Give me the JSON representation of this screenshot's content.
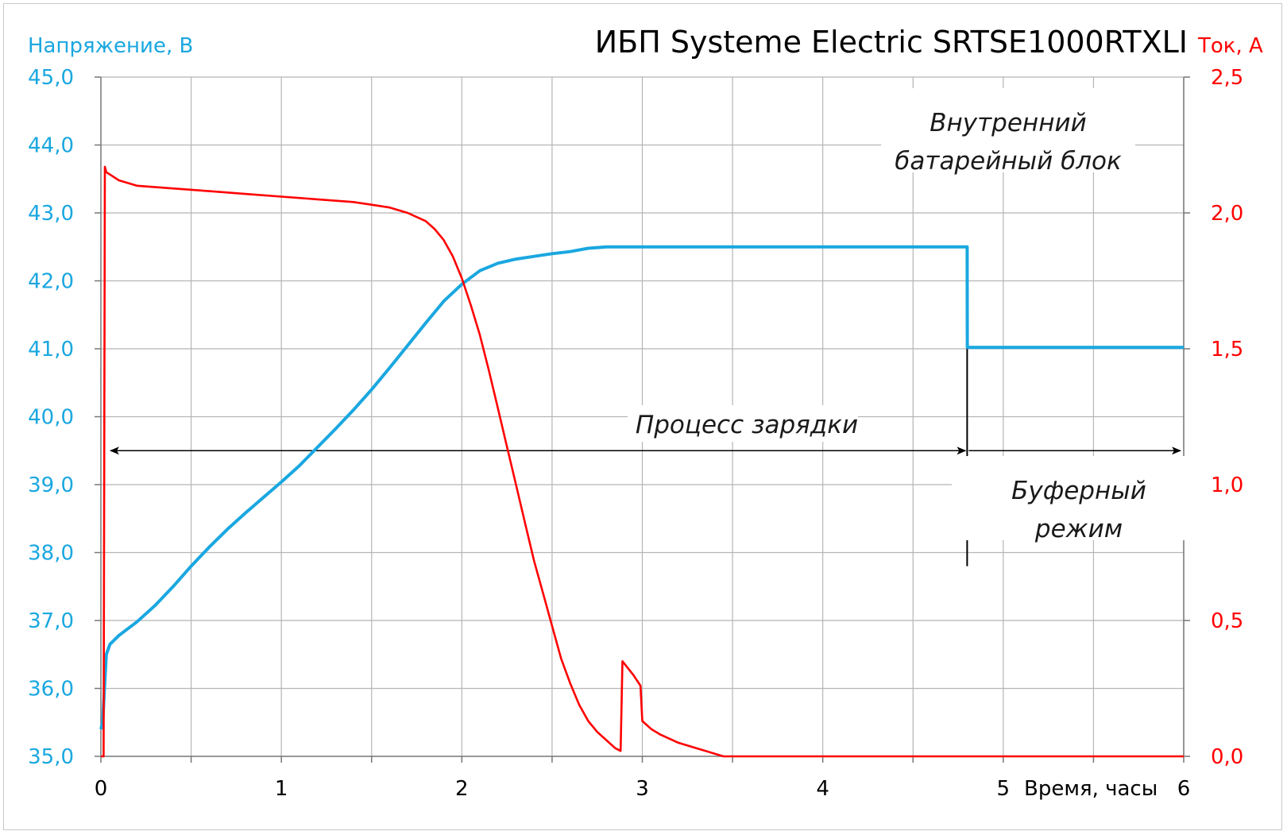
{
  "chart_data": {
    "type": "line",
    "title": "ИБП Systeme Electric SRTSE1000RTXLI",
    "ylabel_left": "Напряжение, В",
    "ylabel_right": "Ток, А",
    "xlabel": "Время, часы",
    "xlim": [
      0,
      6
    ],
    "ylim_left": [
      35,
      45
    ],
    "ylim_right": [
      0,
      2.5
    ],
    "x_ticks": [
      "0",
      "1",
      "2",
      "3",
      "4",
      "5",
      "6"
    ],
    "y_left_ticks": [
      "35,0",
      "36,0",
      "37,0",
      "38,0",
      "39,0",
      "40,0",
      "41,0",
      "42,0",
      "43,0",
      "44,0",
      "45,0"
    ],
    "y_right_ticks": [
      "0,0",
      "0,5",
      "1,0",
      "1,5",
      "2,0",
      "2,5"
    ],
    "grid": true,
    "colors": {
      "voltage": "#1aa7e0",
      "current": "#ff0000",
      "annotation": "#000000"
    },
    "series": [
      {
        "key": "voltage",
        "axis": "left",
        "points": [
          [
            0.0,
            35.4
          ],
          [
            0.01,
            35.5
          ],
          [
            0.02,
            36.0
          ],
          [
            0.03,
            36.5
          ],
          [
            0.05,
            36.65
          ],
          [
            0.1,
            36.78
          ],
          [
            0.2,
            36.98
          ],
          [
            0.3,
            37.22
          ],
          [
            0.4,
            37.5
          ],
          [
            0.5,
            37.8
          ],
          [
            0.6,
            38.08
          ],
          [
            0.7,
            38.34
          ],
          [
            0.8,
            38.58
          ],
          [
            0.9,
            38.81
          ],
          [
            1.0,
            39.04
          ],
          [
            1.1,
            39.28
          ],
          [
            1.2,
            39.55
          ],
          [
            1.3,
            39.82
          ],
          [
            1.4,
            40.1
          ],
          [
            1.5,
            40.4
          ],
          [
            1.6,
            40.72
          ],
          [
            1.7,
            41.05
          ],
          [
            1.8,
            41.38
          ],
          [
            1.9,
            41.7
          ],
          [
            2.0,
            41.95
          ],
          [
            2.1,
            42.15
          ],
          [
            2.2,
            42.26
          ],
          [
            2.3,
            42.32
          ],
          [
            2.4,
            42.36
          ],
          [
            2.5,
            42.4
          ],
          [
            2.6,
            42.43
          ],
          [
            2.7,
            42.48
          ],
          [
            2.8,
            42.5
          ],
          [
            3.0,
            42.5
          ],
          [
            3.5,
            42.5
          ],
          [
            4.0,
            42.5
          ],
          [
            4.5,
            42.5
          ],
          [
            4.8,
            42.5
          ],
          [
            4.801,
            41.02
          ],
          [
            5.0,
            41.02
          ],
          [
            5.5,
            41.02
          ],
          [
            6.0,
            41.02
          ]
        ]
      },
      {
        "key": "current",
        "axis": "right",
        "points": [
          [
            0.0,
            0.0
          ],
          [
            0.015,
            0.0
          ],
          [
            0.022,
            2.17
          ],
          [
            0.03,
            2.15
          ],
          [
            0.1,
            2.12
          ],
          [
            0.2,
            2.1
          ],
          [
            0.4,
            2.09
          ],
          [
            0.6,
            2.08
          ],
          [
            0.8,
            2.07
          ],
          [
            1.0,
            2.06
          ],
          [
            1.2,
            2.05
          ],
          [
            1.4,
            2.04
          ],
          [
            1.5,
            2.03
          ],
          [
            1.6,
            2.02
          ],
          [
            1.7,
            2.0
          ],
          [
            1.8,
            1.97
          ],
          [
            1.85,
            1.94
          ],
          [
            1.9,
            1.9
          ],
          [
            1.95,
            1.84
          ],
          [
            2.0,
            1.76
          ],
          [
            2.05,
            1.66
          ],
          [
            2.1,
            1.55
          ],
          [
            2.15,
            1.42
          ],
          [
            2.2,
            1.28
          ],
          [
            2.25,
            1.14
          ],
          [
            2.3,
            1.0
          ],
          [
            2.35,
            0.86
          ],
          [
            2.4,
            0.72
          ],
          [
            2.45,
            0.6
          ],
          [
            2.5,
            0.48
          ],
          [
            2.55,
            0.36
          ],
          [
            2.6,
            0.27
          ],
          [
            2.65,
            0.19
          ],
          [
            2.7,
            0.13
          ],
          [
            2.75,
            0.09
          ],
          [
            2.8,
            0.06
          ],
          [
            2.85,
            0.03
          ],
          [
            2.88,
            0.02
          ],
          [
            2.89,
            0.35
          ],
          [
            2.95,
            0.3
          ],
          [
            2.99,
            0.26
          ],
          [
            3.0,
            0.13
          ],
          [
            3.05,
            0.1
          ],
          [
            3.1,
            0.08
          ],
          [
            3.2,
            0.05
          ],
          [
            3.3,
            0.03
          ],
          [
            3.4,
            0.01
          ],
          [
            3.45,
            0.0
          ],
          [
            4.0,
            0.0
          ],
          [
            5.0,
            0.0
          ],
          [
            6.0,
            0.0
          ]
        ]
      }
    ],
    "annotations": {
      "internal_battery": [
        "Внутренний",
        "батарейный блок"
      ],
      "charging_process": "Процесс зарядки",
      "buffer_mode": [
        "Буферный",
        "режим"
      ]
    },
    "events": {
      "charge_end_x": 4.8
    }
  }
}
